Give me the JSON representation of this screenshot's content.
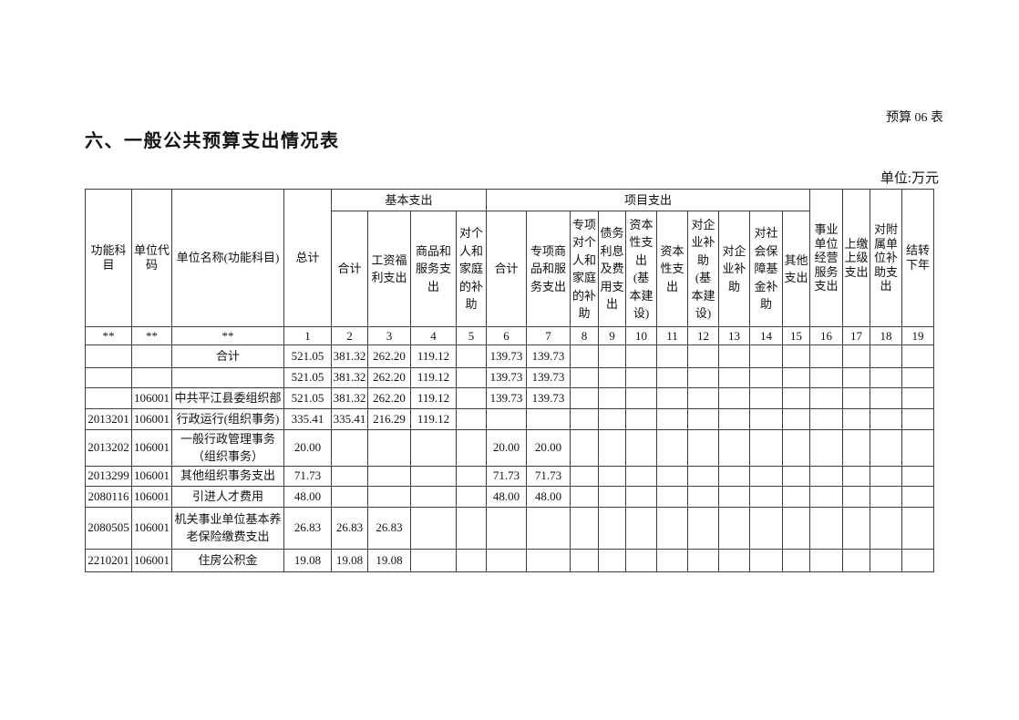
{
  "page": {
    "sheet_label": "预算 06 表",
    "title": "六、一般公共预算支出情况表",
    "unit_label": "单位:万元"
  },
  "table": {
    "groups": {
      "basic": "基本支出",
      "project": "项目支出"
    },
    "headers": {
      "func_subject": "功能科\n目",
      "unit_code": "单位代\n码",
      "unit_name": "单位名称(功能科目)",
      "grand_total": "总计",
      "basic_total": "合计",
      "salary_welfare": "工资福\n利支出",
      "goods_services": "商品和\n服务支\n出",
      "individual_family": "对个\n人和\n家庭\n的补\n助",
      "project_total": "合计",
      "special_goods_services": "专项商\n品和服\n务支出",
      "special_individual_family": "专项\n对个\n人和\n家庭\n的补\n助",
      "debt_interest": "债务\n利息\n及费\n用支\n出",
      "capital_capex": "资本\n性支\n出\n(基\n本建\n设)",
      "capital": "资本\n性支\n出",
      "enterprise_subsidy_capex": "对企\n业补\n助\n(基\n本建\n设)",
      "enterprise_subsidy": "对企\n业补\n助",
      "social_security_subsidy": "对社\n会保\n障基\n金补\n助",
      "other_expenditure": "其他\n支出",
      "business_operation": "事业\n单位\n经营\n服务\n支出",
      "turn_over_superior": "上缴\n上级\n支出",
      "affiliated_subsidy": "对附\n属单\n位补\n助支\n出",
      "carry_forward": "结转\n下年"
    },
    "col_nums": [
      "**",
      "**",
      "**",
      "1",
      "2",
      "3",
      "4",
      "5",
      "6",
      "7",
      "8",
      "9",
      "10",
      "11",
      "12",
      "13",
      "14",
      "15",
      "16",
      "17",
      "18",
      "19"
    ],
    "rows": [
      [
        "",
        "",
        "合计",
        "521.05",
        "381.32",
        "262.20",
        "119.12",
        "",
        "139.73",
        "139.73",
        "",
        "",
        "",
        "",
        "",
        "",
        "",
        "",
        "",
        "",
        "",
        ""
      ],
      [
        "",
        "",
        "",
        "521.05",
        "381.32",
        "262.20",
        "119.12",
        "",
        "139.73",
        "139.73",
        "",
        "",
        "",
        "",
        "",
        "",
        "",
        "",
        "",
        "",
        "",
        ""
      ],
      [
        "",
        "106001",
        "中共平江县委组织部",
        "521.05",
        "381.32",
        "262.20",
        "119.12",
        "",
        "139.73",
        "139.73",
        "",
        "",
        "",
        "",
        "",
        "",
        "",
        "",
        "",
        "",
        "",
        ""
      ],
      [
        "2013201",
        "106001",
        "行政运行(组织事务)",
        "335.41",
        "335.41",
        "216.29",
        "119.12",
        "",
        "",
        "",
        "",
        "",
        "",
        "",
        "",
        "",
        "",
        "",
        "",
        "",
        "",
        ""
      ],
      [
        "2013202",
        "106001",
        "一般行政管理事务\n（组织事务）",
        "20.00",
        "",
        "",
        "",
        "",
        "20.00",
        "20.00",
        "",
        "",
        "",
        "",
        "",
        "",
        "",
        "",
        "",
        "",
        "",
        ""
      ],
      [
        "2013299",
        "106001",
        "其他组织事务支出",
        "71.73",
        "",
        "",
        "",
        "",
        "71.73",
        "71.73",
        "",
        "",
        "",
        "",
        "",
        "",
        "",
        "",
        "",
        "",
        "",
        ""
      ],
      [
        "2080116",
        "106001",
        "引进人才费用",
        "48.00",
        "",
        "",
        "",
        "",
        "48.00",
        "48.00",
        "",
        "",
        "",
        "",
        "",
        "",
        "",
        "",
        "",
        "",
        "",
        ""
      ],
      [
        "2080505",
        "106001",
        "机关事业单位基本养\n老保险缴费支出",
        "26.83",
        "26.83",
        "26.83",
        "",
        "",
        "",
        "",
        "",
        "",
        "",
        "",
        "",
        "",
        "",
        "",
        "",
        "",
        "",
        ""
      ],
      [
        "2210201",
        "106001",
        "住房公积金",
        "19.08",
        "19.08",
        "19.08",
        "",
        "",
        "",
        "",
        "",
        "",
        "",
        "",
        "",
        "",
        "",
        "",
        "",
        "",
        "",
        ""
      ]
    ]
  }
}
